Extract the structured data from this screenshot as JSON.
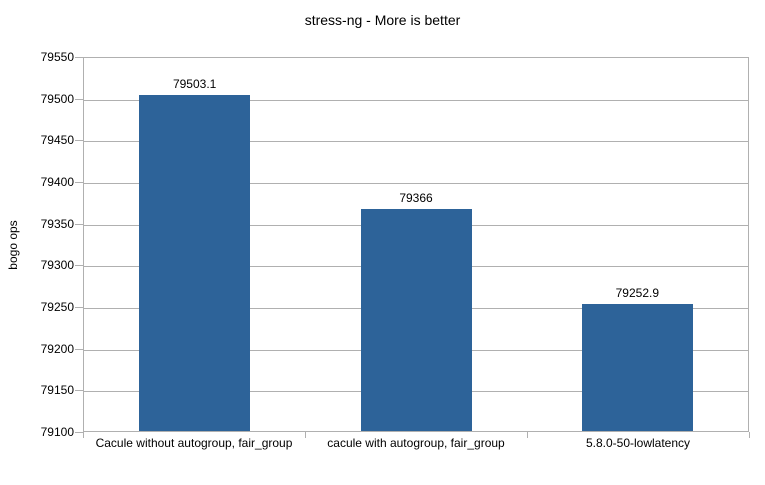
{
  "window": {
    "background": "#ffffff"
  },
  "chart_data": {
    "type": "bar",
    "title": "stress-ng - More is better",
    "xlabel": "",
    "ylabel": "bogo ops",
    "categories": [
      "Cacule without autogroup, fair_group",
      "cacule with autogroup, fair_group",
      "5.8.0-50-lowlatency"
    ],
    "values": [
      79503.1,
      79366,
      79252.9
    ],
    "value_labels": [
      "79503.1",
      "79366",
      "79252.9"
    ],
    "ylim": [
      79100,
      79550
    ],
    "ytick_step": 50,
    "yticks": [
      79100,
      79150,
      79200,
      79250,
      79300,
      79350,
      79400,
      79450,
      79500,
      79550
    ],
    "grid": true,
    "legend_position": "none",
    "bar_color": "#2d6399",
    "grid_color": "#b0b0b0",
    "text_color": "#000000"
  }
}
